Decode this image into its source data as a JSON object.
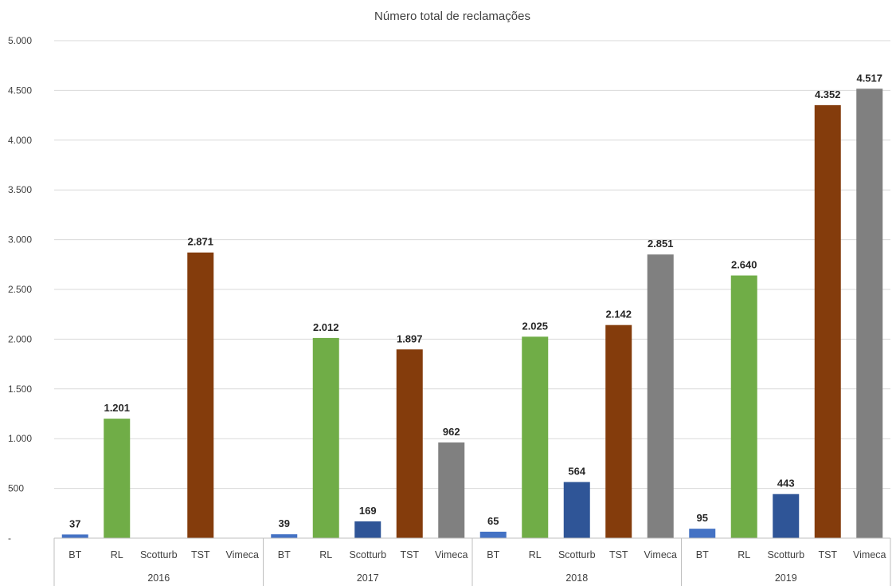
{
  "chart_data": {
    "type": "bar",
    "title": "Número total de reclamações",
    "xlabel": "",
    "ylabel": "",
    "ylim": [
      0,
      5000
    ],
    "yticks": [
      0,
      500,
      1000,
      1500,
      2000,
      2500,
      3000,
      3500,
      4000,
      4500,
      5000
    ],
    "ytick_labels": [
      "-",
      "500",
      "1.000",
      "1.500",
      "2.000",
      "2.500",
      "3.000",
      "3.500",
      "4.000",
      "4.500",
      "5.000"
    ],
    "grid": true,
    "legend": "none",
    "categories": [
      "BT",
      "RL",
      "Scotturb",
      "TST",
      "Vimeca"
    ],
    "colors": {
      "BT": "#4472c4",
      "RL": "#70ad47",
      "Scotturb": "#2f5597",
      "TST": "#843c0c",
      "Vimeca": "#808080"
    },
    "groups": [
      {
        "name": "2016",
        "values": [
          37,
          1201,
          null,
          2871,
          null
        ],
        "labels": [
          "37",
          "1.201",
          "",
          "2.871",
          ""
        ]
      },
      {
        "name": "2017",
        "values": [
          39,
          2012,
          169,
          1897,
          962
        ],
        "labels": [
          "39",
          "2.012",
          "169",
          "1.897",
          "962"
        ]
      },
      {
        "name": "2018",
        "values": [
          65,
          2025,
          564,
          2142,
          2851
        ],
        "labels": [
          "65",
          "2.025",
          "564",
          "2.142",
          "2.851"
        ]
      },
      {
        "name": "2019",
        "values": [
          95,
          2640,
          443,
          4352,
          4517
        ],
        "labels": [
          "95",
          "2.640",
          "443",
          "4.352",
          "4.517"
        ]
      }
    ]
  }
}
